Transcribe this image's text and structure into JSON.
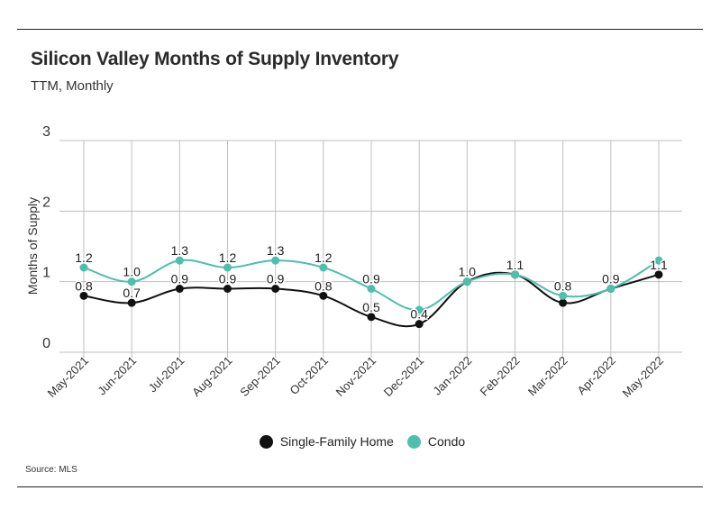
{
  "header": {
    "title": "Silicon Valley Months of Supply Inventory",
    "subtitle": "TTM, Monthly"
  },
  "footer": {
    "source": "Source:  MLS"
  },
  "colors": {
    "single_family": "#111111",
    "condo": "#4dbfaa",
    "grid": "#bfbfbf"
  },
  "chart_data": {
    "type": "line",
    "title": "Silicon Valley Months of Supply Inventory",
    "subtitle": "TTM, Monthly",
    "xlabel": "",
    "ylabel": "Months of Supply",
    "ylim": [
      0,
      3
    ],
    "yticks": [
      0,
      1,
      2,
      3
    ],
    "grid": true,
    "legend_position": "bottom",
    "categories": [
      "May-2021",
      "Jun-2021",
      "Jul-2021",
      "Aug-2021",
      "Sep-2021",
      "Oct-2021",
      "Nov-2021",
      "Dec-2021",
      "Jan-2022",
      "Feb-2022",
      "Mar-2022",
      "Apr-2022",
      "May-2022"
    ],
    "series": [
      {
        "name": "Single-Family Home",
        "color": "#111111",
        "values": [
          0.8,
          0.7,
          0.9,
          0.9,
          0.9,
          0.8,
          0.5,
          0.4,
          1.0,
          1.1,
          0.7,
          0.9,
          1.1
        ],
        "labels": [
          "0.8",
          "0.7",
          "0.9",
          "0.9",
          "0.9",
          "0.8",
          "0.5",
          "0.4",
          "",
          "",
          "",
          "",
          "1.1"
        ]
      },
      {
        "name": "Condo",
        "color": "#4dbfaa",
        "values": [
          1.2,
          1.0,
          1.3,
          1.2,
          1.3,
          1.2,
          0.9,
          0.6,
          1.0,
          1.1,
          0.8,
          0.9,
          1.3
        ],
        "labels": [
          "1.2",
          "1.0",
          "1.3",
          "1.2",
          "1.3",
          "1.2",
          "0.9",
          "",
          "1.0",
          "1.1",
          "0.8",
          "0.9",
          ""
        ]
      }
    ]
  }
}
